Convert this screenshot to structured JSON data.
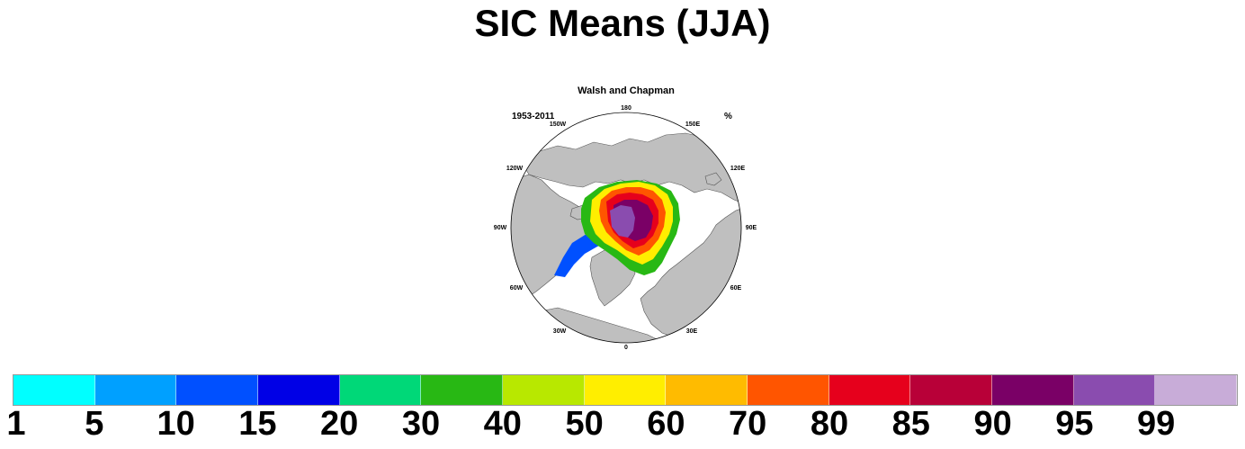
{
  "title": "SIC Means (JJA)",
  "map": {
    "subtitle": "Walsh and Chapman",
    "left_note": "1953-2011",
    "right_note": "%",
    "longitude_labels": [
      "180",
      "150E",
      "120E",
      "90E",
      "60E",
      "30E",
      "0",
      "30W",
      "60W",
      "90W",
      "120W",
      "150W"
    ],
    "colors": {
      "land": "#bfbfbf",
      "ocean": "#ffffff",
      "coast": "#555555"
    }
  },
  "colorbar": {
    "tick_labels": [
      "1",
      "5",
      "10",
      "15",
      "20",
      "30",
      "40",
      "50",
      "60",
      "70",
      "80",
      "85",
      "90",
      "95",
      "99"
    ],
    "colors": [
      "#00ffff",
      "#00a0ff",
      "#0050ff",
      "#0000e6",
      "#00d878",
      "#28b814",
      "#b8e800",
      "#ffee00",
      "#ffbb00",
      "#ff5500",
      "#e6001c",
      "#b80038",
      "#7a0066",
      "#8a4caf",
      "#c8acd8"
    ]
  }
}
